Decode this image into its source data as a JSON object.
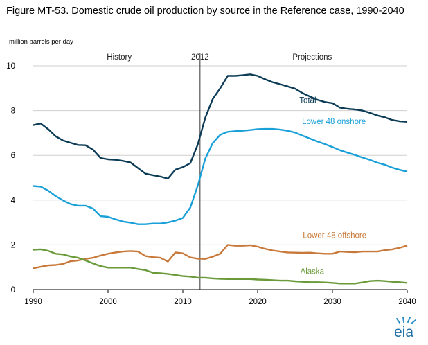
{
  "title": "Figure MT-53. Domestic crude oil production by source in the Reference case, 1990-2040",
  "units_label": "million barrels  per day",
  "logo_text": "eia",
  "chart_data": {
    "type": "line",
    "title": "Figure MT-53. Domestic crude oil production by source in the Reference case, 1990-2040",
    "ylabel": "million barrels  per day",
    "xlabel": "",
    "xlim": [
      1990,
      2040
    ],
    "ylim": [
      0,
      10
    ],
    "x_ticks": [
      "1990",
      "2000",
      "2010",
      "2020",
      "2030",
      "2040"
    ],
    "y_ticks": [
      "0",
      "2",
      "4",
      "6",
      "8",
      "10"
    ],
    "grid": "horizontal",
    "divider": {
      "year": 2012.3,
      "label": "2012"
    },
    "period_labels": [
      "History",
      "Projections"
    ],
    "x": [
      1990,
      1991,
      1992,
      1993,
      1994,
      1995,
      1996,
      1997,
      1998,
      1999,
      2000,
      2001,
      2002,
      2003,
      2004,
      2005,
      2006,
      2007,
      2008,
      2009,
      2010,
      2011,
      2012,
      2013,
      2014,
      2015,
      2016,
      2017,
      2018,
      2019,
      2020,
      2021,
      2022,
      2023,
      2024,
      2025,
      2026,
      2027,
      2028,
      2029,
      2030,
      2031,
      2032,
      2033,
      2034,
      2035,
      2036,
      2037,
      2038,
      2039,
      2040
    ],
    "series": [
      {
        "name": "Total",
        "color": "#0c3c55",
        "values": [
          7.35,
          7.42,
          7.17,
          6.85,
          6.66,
          6.56,
          6.46,
          6.45,
          6.25,
          5.88,
          5.82,
          5.8,
          5.75,
          5.68,
          5.43,
          5.18,
          5.11,
          5.05,
          4.96,
          5.36,
          5.47,
          5.65,
          6.49,
          7.68,
          8.52,
          9.0,
          9.55,
          9.55,
          9.58,
          9.62,
          9.55,
          9.4,
          9.27,
          9.18,
          9.08,
          8.98,
          8.78,
          8.63,
          8.48,
          8.38,
          8.33,
          8.13,
          8.08,
          8.05,
          8.0,
          7.9,
          7.78,
          7.7,
          7.58,
          7.52,
          7.5
        ]
      },
      {
        "name": "Lower 48 onshore",
        "color": "#1aa0d8",
        "values": [
          4.63,
          4.6,
          4.42,
          4.18,
          3.98,
          3.82,
          3.75,
          3.75,
          3.62,
          3.28,
          3.25,
          3.14,
          3.04,
          2.99,
          2.92,
          2.92,
          2.95,
          2.95,
          3.0,
          3.08,
          3.2,
          3.67,
          4.65,
          5.85,
          6.55,
          6.92,
          7.05,
          7.08,
          7.1,
          7.13,
          7.17,
          7.18,
          7.18,
          7.15,
          7.1,
          7.02,
          6.88,
          6.75,
          6.62,
          6.5,
          6.37,
          6.23,
          6.12,
          6.02,
          5.9,
          5.8,
          5.67,
          5.58,
          5.45,
          5.35,
          5.27
        ]
      },
      {
        "name": "Lower 48 offshore",
        "color": "#c8793a",
        "values": [
          0.95,
          1.02,
          1.08,
          1.1,
          1.15,
          1.27,
          1.3,
          1.37,
          1.42,
          1.52,
          1.6,
          1.66,
          1.7,
          1.72,
          1.7,
          1.5,
          1.45,
          1.42,
          1.25,
          1.66,
          1.62,
          1.44,
          1.38,
          1.37,
          1.47,
          1.6,
          2.0,
          1.96,
          1.96,
          1.98,
          1.92,
          1.82,
          1.75,
          1.7,
          1.66,
          1.65,
          1.64,
          1.65,
          1.62,
          1.6,
          1.6,
          1.7,
          1.68,
          1.67,
          1.7,
          1.7,
          1.7,
          1.76,
          1.8,
          1.87,
          1.97
        ]
      },
      {
        "name": "Alaska",
        "color": "#6a9a3a",
        "values": [
          1.78,
          1.8,
          1.73,
          1.6,
          1.57,
          1.48,
          1.42,
          1.3,
          1.17,
          1.05,
          0.98,
          0.98,
          0.98,
          0.98,
          0.92,
          0.87,
          0.75,
          0.73,
          0.7,
          0.65,
          0.6,
          0.58,
          0.53,
          0.53,
          0.5,
          0.48,
          0.47,
          0.47,
          0.47,
          0.47,
          0.45,
          0.44,
          0.42,
          0.4,
          0.4,
          0.37,
          0.35,
          0.33,
          0.33,
          0.32,
          0.3,
          0.27,
          0.27,
          0.27,
          0.32,
          0.38,
          0.4,
          0.38,
          0.35,
          0.33,
          0.3
        ]
      }
    ]
  }
}
